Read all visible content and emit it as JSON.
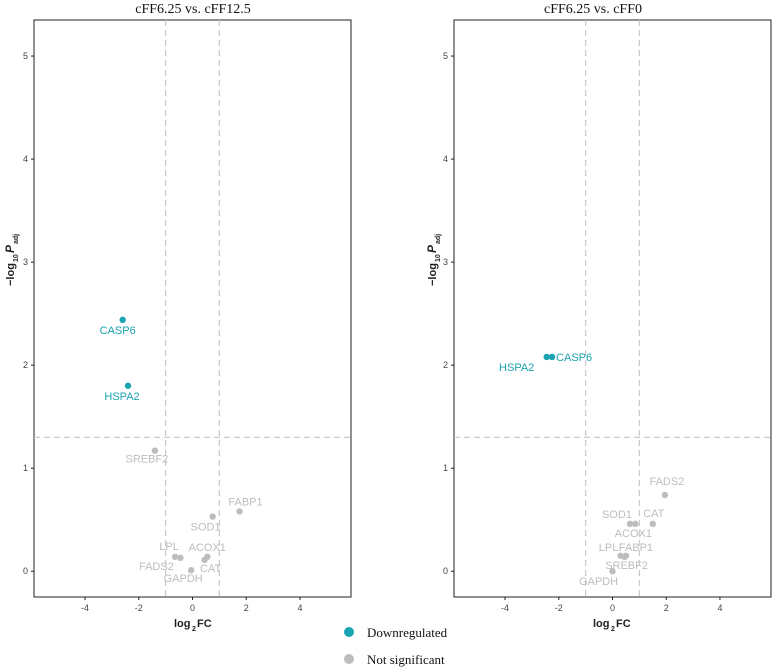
{
  "chart_data": [
    {
      "type": "scatter",
      "title": "cFF6.25  vs. cFF12.5",
      "xlabel": "log2FC",
      "ylabel": "-log10 P adj",
      "xlim": [
        -5.9,
        5.9
      ],
      "ylim": [
        -0.25,
        5.35
      ],
      "xticks": [
        -4,
        -2,
        0,
        2,
        4
      ],
      "yticks": [
        0,
        1,
        2,
        3,
        4,
        5
      ],
      "vlines": [
        -1,
        1
      ],
      "hline": 1.3,
      "points": [
        {
          "label": "CASP6",
          "x": -2.6,
          "y": 2.44,
          "group": "Downregulated"
        },
        {
          "label": "HSPA2",
          "x": -2.4,
          "y": 1.8,
          "group": "Downregulated"
        },
        {
          "label": "SREBF2",
          "x": -1.4,
          "y": 1.17,
          "group": "Not significant"
        },
        {
          "label": "FABP1",
          "x": 1.75,
          "y": 0.58,
          "group": "Not significant"
        },
        {
          "label": "SOD1",
          "x": 0.75,
          "y": 0.53,
          "group": "Not significant"
        },
        {
          "label": "ACOX1",
          "x": 0.55,
          "y": 0.14,
          "group": "Not significant"
        },
        {
          "label": "LPL",
          "x": -0.65,
          "y": 0.14,
          "group": "Not significant"
        },
        {
          "label": "FADS2",
          "x": -0.45,
          "y": 0.13,
          "group": "Not significant"
        },
        {
          "label": "CAT",
          "x": 0.45,
          "y": 0.11,
          "group": "Not significant"
        },
        {
          "label": "GAPDH",
          "x": -0.05,
          "y": 0.01,
          "group": "Not significant"
        }
      ]
    },
    {
      "type": "scatter",
      "title": "cFF6.25  vs. cFF0",
      "xlabel": "log2FC",
      "ylabel": "-log10 P adj",
      "xlim": [
        -5.9,
        5.9
      ],
      "ylim": [
        -0.25,
        5.35
      ],
      "xticks": [
        -4,
        -2,
        0,
        2,
        4
      ],
      "yticks": [
        0,
        1,
        2,
        3,
        4,
        5
      ],
      "vlines": [
        -1,
        1
      ],
      "hline": 1.3,
      "points": [
        {
          "label": "HSPA2",
          "x": -2.45,
          "y": 2.08,
          "group": "Downregulated"
        },
        {
          "label": "CASP6",
          "x": -2.25,
          "y": 2.08,
          "group": "Downregulated"
        },
        {
          "label": "FADS2",
          "x": 1.95,
          "y": 0.74,
          "group": "Not significant"
        },
        {
          "label": "SOD1",
          "x": 0.65,
          "y": 0.46,
          "group": "Not significant"
        },
        {
          "label": "ACOX1",
          "x": 0.85,
          "y": 0.46,
          "group": "Not significant"
        },
        {
          "label": "CAT",
          "x": 1.5,
          "y": 0.46,
          "group": "Not significant"
        },
        {
          "label": "LPL",
          "x": 0.3,
          "y": 0.15,
          "group": "Not significant"
        },
        {
          "label": "FABP1",
          "x": 0.5,
          "y": 0.15,
          "group": "Not significant"
        },
        {
          "label": "SREBF2",
          "x": 0.45,
          "y": 0.14,
          "group": "Not significant"
        },
        {
          "label": "GAPDH",
          "x": 0.0,
          "y": 0.0,
          "group": "Not significant"
        }
      ]
    }
  ],
  "legend": {
    "items": [
      {
        "label": "Downregulated",
        "color": "#1aa3b0"
      },
      {
        "label": "Not significant",
        "color": "#bdbdbd"
      }
    ]
  },
  "colors": {
    "down": "#1aa3b0",
    "ns": "#bdbdbd",
    "grid_line": "#c8c8c8",
    "frame": "#222222"
  }
}
